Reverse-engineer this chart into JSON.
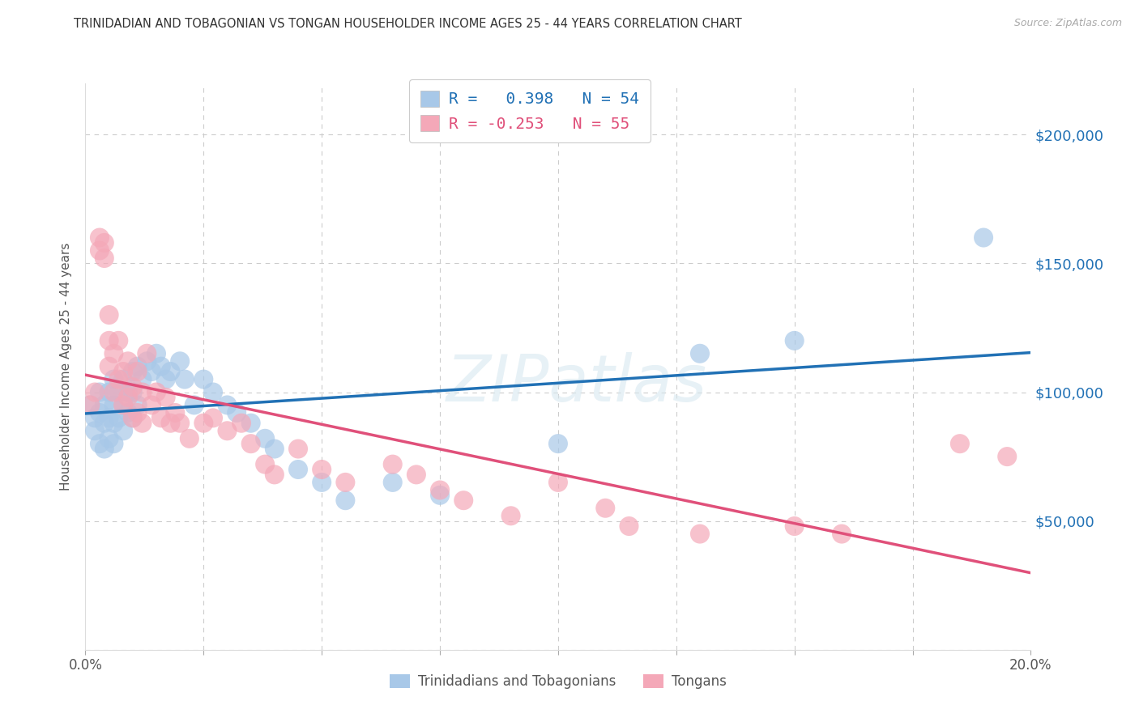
{
  "title": "TRINIDADIAN AND TOBAGONIAN VS TONGAN HOUSEHOLDER INCOME AGES 25 - 44 YEARS CORRELATION CHART",
  "source": "Source: ZipAtlas.com",
  "ylabel": "Householder Income Ages 25 - 44 years",
  "xlim": [
    0.0,
    0.2
  ],
  "ylim": [
    0,
    220000
  ],
  "yticks": [
    0,
    50000,
    100000,
    150000,
    200000
  ],
  "xticks": [
    0.0,
    0.025,
    0.05,
    0.075,
    0.1,
    0.125,
    0.15,
    0.175,
    0.2
  ],
  "blue_color": "#a8c8e8",
  "pink_color": "#f4a8b8",
  "blue_line_color": "#2171b5",
  "pink_line_color": "#e0507a",
  "title_color": "#333333",
  "source_color": "#aaaaaa",
  "R_blue": 0.398,
  "N_blue": 54,
  "R_pink": -0.253,
  "N_pink": 55,
  "blue_scatter_x": [
    0.001,
    0.002,
    0.002,
    0.003,
    0.003,
    0.003,
    0.004,
    0.004,
    0.004,
    0.005,
    0.005,
    0.005,
    0.006,
    0.006,
    0.006,
    0.006,
    0.007,
    0.007,
    0.008,
    0.008,
    0.008,
    0.009,
    0.009,
    0.01,
    0.01,
    0.01,
    0.011,
    0.011,
    0.012,
    0.013,
    0.014,
    0.015,
    0.016,
    0.017,
    0.018,
    0.02,
    0.021,
    0.023,
    0.025,
    0.027,
    0.03,
    0.032,
    0.035,
    0.038,
    0.04,
    0.045,
    0.05,
    0.055,
    0.065,
    0.075,
    0.1,
    0.13,
    0.15,
    0.19
  ],
  "blue_scatter_y": [
    95000,
    90000,
    85000,
    100000,
    92000,
    80000,
    95000,
    88000,
    78000,
    100000,
    90000,
    82000,
    105000,
    95000,
    88000,
    80000,
    100000,
    90000,
    105000,
    95000,
    85000,
    100000,
    92000,
    108000,
    100000,
    90000,
    110000,
    95000,
    105000,
    112000,
    108000,
    115000,
    110000,
    105000,
    108000,
    112000,
    105000,
    95000,
    105000,
    100000,
    95000,
    92000,
    88000,
    82000,
    78000,
    70000,
    65000,
    58000,
    65000,
    60000,
    80000,
    115000,
    120000,
    160000
  ],
  "pink_scatter_x": [
    0.001,
    0.002,
    0.003,
    0.003,
    0.004,
    0.004,
    0.005,
    0.005,
    0.005,
    0.006,
    0.006,
    0.007,
    0.007,
    0.008,
    0.008,
    0.009,
    0.009,
    0.01,
    0.01,
    0.011,
    0.011,
    0.012,
    0.012,
    0.013,
    0.014,
    0.015,
    0.016,
    0.017,
    0.018,
    0.019,
    0.02,
    0.022,
    0.025,
    0.027,
    0.03,
    0.033,
    0.035,
    0.038,
    0.04,
    0.045,
    0.05,
    0.055,
    0.065,
    0.07,
    0.075,
    0.08,
    0.09,
    0.1,
    0.11,
    0.115,
    0.13,
    0.15,
    0.16,
    0.185,
    0.195
  ],
  "pink_scatter_y": [
    95000,
    100000,
    155000,
    160000,
    158000,
    152000,
    130000,
    120000,
    110000,
    115000,
    100000,
    120000,
    105000,
    108000,
    95000,
    112000,
    98000,
    102000,
    90000,
    108000,
    92000,
    100000,
    88000,
    115000,
    95000,
    100000,
    90000,
    98000,
    88000,
    92000,
    88000,
    82000,
    88000,
    90000,
    85000,
    88000,
    80000,
    72000,
    68000,
    78000,
    70000,
    65000,
    72000,
    68000,
    62000,
    58000,
    52000,
    65000,
    55000,
    48000,
    45000,
    48000,
    45000,
    80000,
    75000
  ],
  "background_color": "#ffffff",
  "grid_color": "#cccccc",
  "legend_label_blue": "Trinidadians and Tobagonians",
  "legend_label_pink": "Tongans"
}
